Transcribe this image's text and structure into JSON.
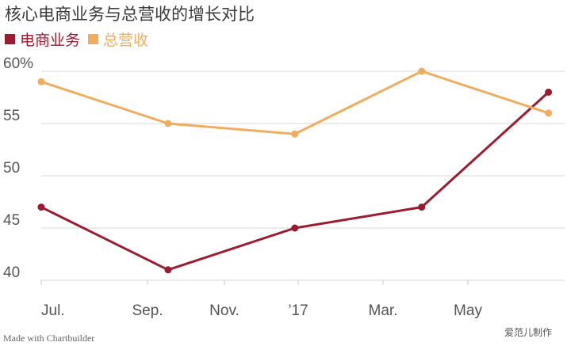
{
  "header": {
    "title": "核心电商业务与总营收的增长对比"
  },
  "chart_data": {
    "type": "line",
    "title": "核心电商业务与总营收的增长对比",
    "xlabel": "",
    "ylabel": "",
    "x_tick_labels": [
      "Jul.",
      "Sep.",
      "Nov.",
      "’17",
      "Mar.",
      "May"
    ],
    "y_tick_labels": [
      "60%",
      "55",
      "50",
      "45",
      "40"
    ],
    "y_ticks": [
      60,
      55,
      50,
      45,
      40
    ],
    "ylim": [
      40,
      60
    ],
    "grid": true,
    "legend_position": "top-left",
    "series": [
      {
        "name": "电商业务",
        "color": "#9b1b30",
        "x": [
          "2016-07",
          "2016-10",
          "2017-01",
          "2017-04",
          "2017-07"
        ],
        "values": [
          47,
          41,
          45,
          47,
          58
        ]
      },
      {
        "name": "总营收",
        "color": "#f0ad5e",
        "x": [
          "2016-07",
          "2016-10",
          "2017-01",
          "2017-04",
          "2017-07"
        ],
        "values": [
          59,
          55,
          54,
          60,
          56
        ]
      }
    ]
  },
  "footer": {
    "credit": "Made with Chartbuilder",
    "watermark": "爱范儿制作"
  }
}
